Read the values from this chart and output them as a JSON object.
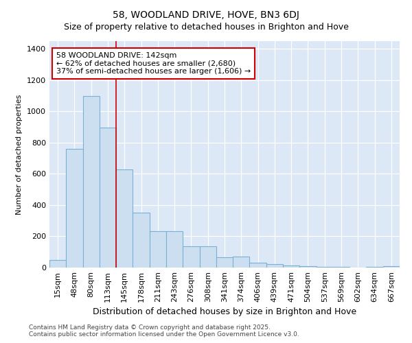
{
  "title": "58, WOODLAND DRIVE, HOVE, BN3 6DJ",
  "subtitle": "Size of property relative to detached houses in Brighton and Hove",
  "xlabel": "Distribution of detached houses by size in Brighton and Hove",
  "ylabel": "Number of detached properties",
  "categories": [
    "15sqm",
    "48sqm",
    "80sqm",
    "113sqm",
    "145sqm",
    "178sqm",
    "211sqm",
    "243sqm",
    "276sqm",
    "308sqm",
    "341sqm",
    "374sqm",
    "406sqm",
    "439sqm",
    "471sqm",
    "504sqm",
    "537sqm",
    "569sqm",
    "602sqm",
    "634sqm",
    "667sqm"
  ],
  "values": [
    50,
    760,
    1100,
    895,
    630,
    350,
    235,
    235,
    135,
    135,
    65,
    70,
    30,
    20,
    15,
    10,
    5,
    5,
    2,
    5,
    10
  ],
  "bar_color": "#ccdff0",
  "bar_edge_color": "#7ab0d4",
  "red_line_index": 4,
  "annotation_text": "58 WOODLAND DRIVE: 142sqm\n← 62% of detached houses are smaller (2,680)\n37% of semi-detached houses are larger (1,606) →",
  "annotation_box_color": "#ffffff",
  "annotation_box_edge": "#cc0000",
  "ylim": [
    0,
    1450
  ],
  "yticks": [
    0,
    200,
    400,
    600,
    800,
    1000,
    1200,
    1400
  ],
  "plot_bg_color": "#dce8f5",
  "fig_bg_color": "#ffffff",
  "grid_color": "#ffffff",
  "footer_line1": "Contains HM Land Registry data © Crown copyright and database right 2025.",
  "footer_line2": "Contains public sector information licensed under the Open Government Licence v3.0.",
  "title_fontsize": 10,
  "subtitle_fontsize": 9,
  "xlabel_fontsize": 9,
  "ylabel_fontsize": 8,
  "tick_fontsize": 8,
  "annotation_fontsize": 8,
  "footer_fontsize": 6.5
}
